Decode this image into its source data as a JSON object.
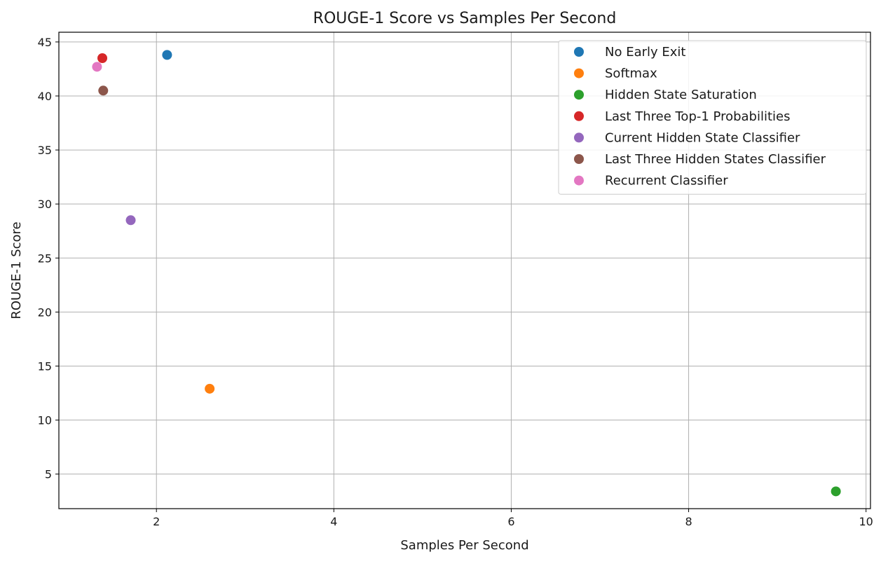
{
  "chart_data": {
    "type": "scatter",
    "title": "ROUGE-1 Score vs Samples Per Second",
    "xlabel": "Samples Per Second",
    "ylabel": "ROUGE-1 Score",
    "xlim": [
      0.9,
      10.05
    ],
    "ylim": [
      1.8,
      45.9
    ],
    "xticks": [
      2,
      4,
      6,
      8,
      10
    ],
    "yticks": [
      5,
      10,
      15,
      20,
      25,
      30,
      35,
      40,
      45
    ],
    "grid": true,
    "legend_position": "top-right",
    "series": [
      {
        "name": "No Early Exit",
        "color": "#1f77b4",
        "x": [
          2.12
        ],
        "y": [
          43.8
        ]
      },
      {
        "name": "Softmax",
        "color": "#ff7f0e",
        "x": [
          2.6
        ],
        "y": [
          12.9
        ]
      },
      {
        "name": "Hidden State Saturation",
        "color": "#2ca02c",
        "x": [
          9.66
        ],
        "y": [
          3.4
        ]
      },
      {
        "name": "Last Three Top-1 Probabilities",
        "color": "#d62728",
        "x": [
          1.39
        ],
        "y": [
          43.5
        ]
      },
      {
        "name": "Current Hidden State Classifier",
        "color": "#9467bd",
        "x": [
          1.71
        ],
        "y": [
          28.5
        ]
      },
      {
        "name": "Last Three Hidden States Classifier",
        "color": "#8c564b",
        "x": [
          1.4
        ],
        "y": [
          40.5
        ]
      },
      {
        "name": "Recurrent Classifier",
        "color": "#e377c2",
        "x": [
          1.33
        ],
        "y": [
          42.7
        ]
      }
    ]
  }
}
